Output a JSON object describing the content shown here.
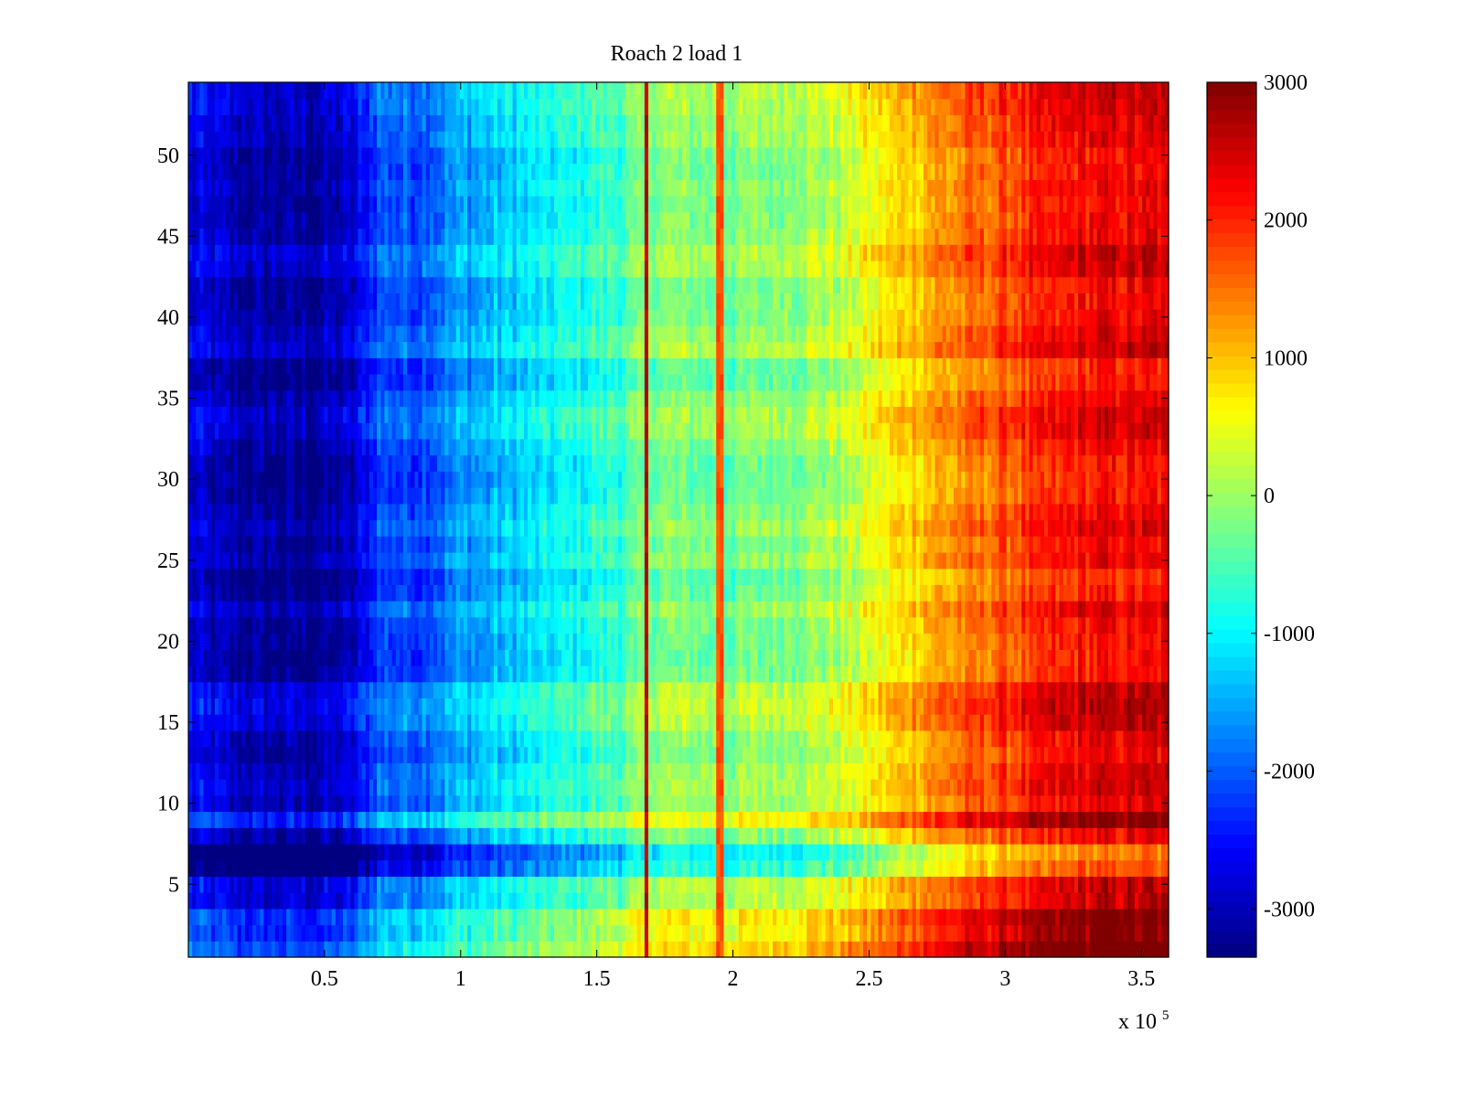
{
  "chart_data": {
    "type": "heatmap",
    "title": "Roach 2 load 1",
    "xlabel": "",
    "ylabel": "",
    "x_exponent_label": {
      "base": "x 10",
      "exp": "5"
    },
    "xlim": [
      0,
      360000
    ],
    "ylim": [
      0.5,
      54.5
    ],
    "x_ticks": [
      {
        "value": 50000,
        "label": "0.5"
      },
      {
        "value": 100000,
        "label": "1"
      },
      {
        "value": 150000,
        "label": "1.5"
      },
      {
        "value": 200000,
        "label": "2"
      },
      {
        "value": 250000,
        "label": "2.5"
      },
      {
        "value": 300000,
        "label": "3"
      },
      {
        "value": 350000,
        "label": "3.5"
      }
    ],
    "y_ticks": [
      {
        "value": 5,
        "label": "5"
      },
      {
        "value": 10,
        "label": "10"
      },
      {
        "value": 15,
        "label": "15"
      },
      {
        "value": 20,
        "label": "20"
      },
      {
        "value": 25,
        "label": "25"
      },
      {
        "value": 30,
        "label": "30"
      },
      {
        "value": 35,
        "label": "35"
      },
      {
        "value": 40,
        "label": "40"
      },
      {
        "value": 45,
        "label": "45"
      },
      {
        "value": 50,
        "label": "50"
      }
    ],
    "rows": 54,
    "colormap": "jet",
    "colorbar": {
      "range": [
        -3350,
        3000
      ],
      "ticks": [
        {
          "value": 3000,
          "label": "3000"
        },
        {
          "value": 2000,
          "label": "2000"
        },
        {
          "value": 1000,
          "label": "1000"
        },
        {
          "value": 0,
          "label": "0"
        },
        {
          "value": -1000,
          "label": "-1000"
        },
        {
          "value": -2000,
          "label": "-2000"
        },
        {
          "value": -3000,
          "label": "-3000"
        }
      ]
    },
    "column_profile": {
      "x": [
        0,
        20000,
        45000,
        60000,
        70000,
        85000,
        100000,
        130000,
        160000,
        170000,
        200000,
        240000,
        270000,
        300000,
        330000,
        360000
      ],
      "values": [
        -2300,
        -2700,
        -2750,
        -2500,
        -1600,
        -1600,
        -1150,
        -650,
        -100,
        300,
        200,
        600,
        1550,
        2150,
        2650,
        2700
      ]
    },
    "row_offsets": [
      600,
      300,
      400,
      -150,
      -100,
      -1000,
      -1250,
      -450,
      300,
      -350,
      -200,
      -250,
      -450,
      -350,
      -100,
      0,
      -100,
      -550,
      -600,
      -550,
      -500,
      -300,
      -600,
      -700,
      -350,
      -500,
      -300,
      -450,
      -600,
      -650,
      -600,
      -450,
      -250,
      -200,
      -400,
      -650,
      -650,
      -150,
      -300,
      -450,
      -500,
      -500,
      -200,
      -150,
      -400,
      -450,
      -500,
      -400,
      -500,
      -500,
      -300,
      -300,
      -200,
      -150
    ],
    "stripes": [
      {
        "x": 168000,
        "value": 2800
      },
      {
        "x": 195000,
        "value": 1900
      }
    ]
  }
}
